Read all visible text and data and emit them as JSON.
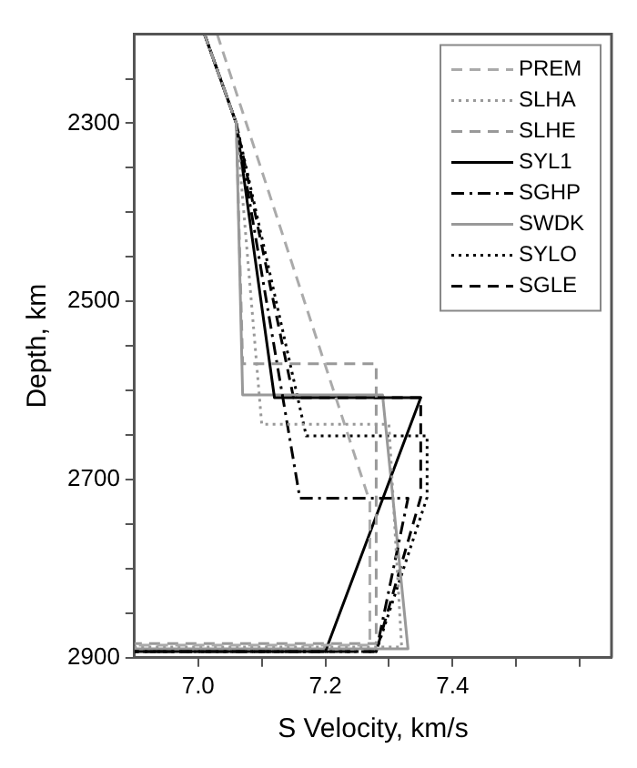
{
  "chart_data": {
    "type": "line",
    "xlabel": "S Velocity, km/s",
    "ylabel": "Depth, km",
    "xlim": [
      6.9,
      7.65
    ],
    "xticks": [
      {
        "value": 7.0,
        "label": "7.0"
      },
      {
        "value": 7.1,
        "label": null
      },
      7.2,
      {
        "value": 7.3,
        "label": null
      },
      7.4,
      {
        "value": 7.5,
        "label": null
      },
      {
        "value": 7.6,
        "label": null
      }
    ],
    "ylim": [
      2900,
      2200
    ],
    "yticks": [
      {
        "value": 2250,
        "label": null
      },
      2300,
      {
        "value": 2350,
        "label": null
      },
      {
        "value": 2400,
        "label": null
      },
      {
        "value": 2450,
        "label": null
      },
      2500,
      {
        "value": 2550,
        "label": null
      },
      {
        "value": 2600,
        "label": null
      },
      {
        "value": 2650,
        "label": null
      },
      2700,
      {
        "value": 2750,
        "label": null
      },
      {
        "value": 2800,
        "label": null
      },
      {
        "value": 2850,
        "label": null
      },
      2900
    ],
    "grid": false,
    "legend": "top right",
    "marker": "none",
    "series": [
      {
        "name": "PREM",
        "color": "#aaaaaa",
        "line_style": "dashed",
        "x": [
          7.03,
          7.27,
          7.27,
          6.9
        ],
        "values": [
          2200,
          2725,
          2886,
          2886
        ]
      },
      {
        "name": "SLHA",
        "color": "#999999",
        "line_style": "dotted",
        "x": [
          7.01,
          7.06,
          7.1,
          7.3,
          7.32,
          6.9
        ],
        "values": [
          2200,
          2300,
          2638,
          2638,
          2888,
          2888
        ]
      },
      {
        "name": "SLHE",
        "color": "#999999",
        "line_style": "dashed",
        "x": [
          7.01,
          7.06,
          7.07,
          7.28,
          7.28,
          6.9
        ],
        "values": [
          2200,
          2300,
          2570,
          2570,
          2884,
          2884
        ]
      },
      {
        "name": "SYL1",
        "color": "#000000",
        "line_style": "solid",
        "x": [
          7.01,
          7.06,
          7.12,
          7.35,
          7.2,
          6.9
        ],
        "values": [
          2200,
          2300,
          2608,
          2608,
          2893,
          2893
        ]
      },
      {
        "name": "SGHP",
        "color": "#000000",
        "line_style": "dashdot",
        "x": [
          7.01,
          7.06,
          7.16,
          7.33,
          7.28,
          6.9
        ],
        "values": [
          2200,
          2300,
          2721,
          2721,
          2893,
          2893
        ]
      },
      {
        "name": "SWDK",
        "color": "#999999",
        "line_style": "solid",
        "x": [
          7.01,
          7.06,
          7.07,
          7.29,
          7.33,
          6.9
        ],
        "values": [
          2200,
          2300,
          2605,
          2605,
          2890,
          2890
        ]
      },
      {
        "name": "SYLO",
        "color": "#000000",
        "line_style": "dotted",
        "x": [
          7.01,
          7.06,
          7.17,
          7.36,
          7.36,
          7.28,
          6.9
        ],
        "values": [
          2200,
          2300,
          2651,
          2651,
          2720,
          2893,
          2893
        ]
      },
      {
        "name": "SGLE",
        "color": "#000000",
        "line_style": "dashed",
        "x": [
          7.01,
          7.06,
          7.15,
          7.35,
          7.35,
          7.28,
          6.9
        ],
        "values": [
          2200,
          2300,
          2608,
          2608,
          2720,
          2893,
          2893
        ]
      }
    ]
  }
}
